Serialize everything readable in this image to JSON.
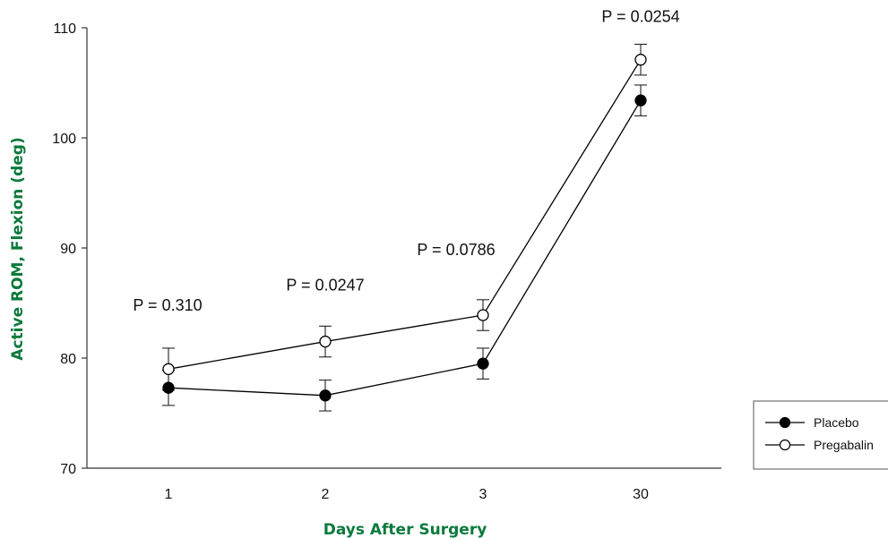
{
  "chart_data": {
    "type": "line",
    "categories": [
      "1",
      "2",
      "3",
      "30"
    ],
    "xlabel": "Days After Surgery",
    "ylabel": "Active ROM, Flexion (deg)",
    "ylim": [
      70,
      110
    ],
    "yticks": [
      70,
      80,
      90,
      100,
      110
    ],
    "grid": false,
    "legend_position": "bottom-right",
    "axis_title_color": "#0a7a3c",
    "series": [
      {
        "name": "Placebo",
        "marker": "filled-circle",
        "color": "#000000",
        "values": [
          77.3,
          76.6,
          79.5,
          103.4
        ],
        "error": [
          1.6,
          1.4,
          1.4,
          1.4
        ]
      },
      {
        "name": "Pregabalin",
        "marker": "open-circle",
        "color": "#000000",
        "values": [
          79.0,
          81.5,
          83.9,
          107.1
        ],
        "error": [
          1.9,
          1.4,
          1.4,
          1.4
        ]
      }
    ],
    "annotations": [
      "P = 0.310",
      "P = 0.0247",
      "P = 0.0786",
      "P = 0.0254"
    ]
  }
}
